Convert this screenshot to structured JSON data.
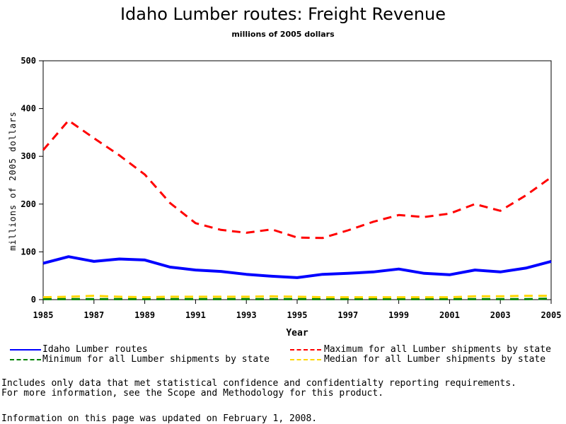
{
  "chart_data": {
    "type": "line",
    "title": "Idaho Lumber routes: Freight Revenue",
    "subtitle": "millions of 2005 dollars",
    "xlabel": "Year",
    "ylabel": "millions of 2005 dollars",
    "xlim": [
      1985,
      2005
    ],
    "ylim": [
      0,
      500
    ],
    "x_ticks": [
      1985,
      1987,
      1989,
      1991,
      1993,
      1995,
      1997,
      1999,
      2001,
      2003,
      2005
    ],
    "y_ticks": [
      0,
      100,
      200,
      300,
      400,
      500
    ],
    "grid": false,
    "legend_position": "bottom",
    "x": [
      1985,
      1986,
      1987,
      1988,
      1989,
      1990,
      1991,
      1992,
      1993,
      1994,
      1995,
      1996,
      1997,
      1998,
      1999,
      2000,
      2001,
      2002,
      2003,
      2004,
      2005
    ],
    "series": [
      {
        "name": "Idaho Lumber routes",
        "color": "#0000ff",
        "dash": "solid",
        "values": [
          76,
          90,
          80,
          85,
          83,
          68,
          62,
          59,
          53,
          49,
          46,
          53,
          55,
          58,
          64,
          55,
          52,
          62,
          58,
          66,
          80
        ]
      },
      {
        "name": "Maximum for all Lumber shipments by state",
        "color": "#ff0000",
        "dash": "dashed",
        "values": [
          313,
          375,
          338,
          302,
          262,
          202,
          160,
          146,
          140,
          147,
          130,
          129,
          145,
          163,
          177,
          173,
          180,
          200,
          186,
          218,
          256
        ]
      },
      {
        "name": "Minimum for all Lumber shipments by state",
        "color": "#008000",
        "dash": "dashed",
        "values": [
          1,
          1,
          1,
          1,
          1,
          1,
          1,
          1,
          1,
          1,
          1,
          1,
          1,
          1,
          1,
          1,
          1,
          1,
          1,
          1,
          2
        ]
      },
      {
        "name": "Median for all Lumber shipments by state",
        "color": "#ffd700",
        "dash": "dashed",
        "values": [
          5,
          6,
          8,
          6,
          5,
          6,
          6,
          6,
          6,
          7,
          6,
          5,
          5,
          5,
          5,
          5,
          5,
          7,
          7,
          8,
          8
        ]
      }
    ]
  },
  "notes": {
    "line1": "Includes only data that met statistical confidence and confidentialty reporting requirements.",
    "line2": "For more information, see the Scope and Methodology for this product.",
    "updated": "Information on this page was updated on February 1, 2008."
  }
}
